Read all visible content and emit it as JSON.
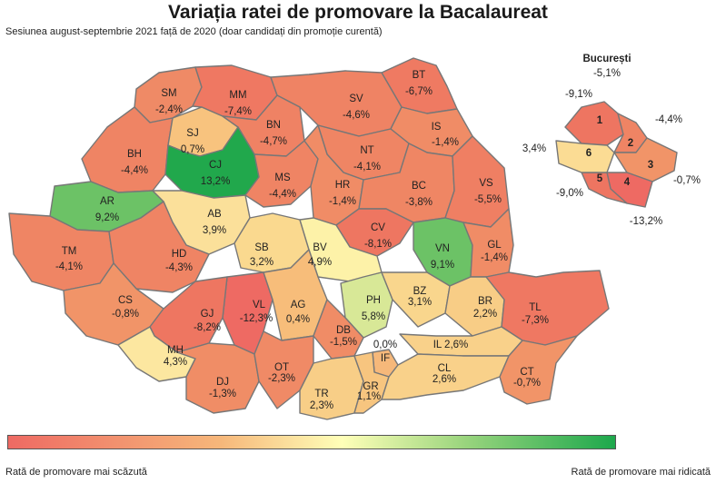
{
  "title": "Variația ratei de promovare la Bacalaureat",
  "subtitle": "Sesiunea august-septembrie 2021 față de 2020 (doar candidați din promoție curentă)",
  "legend": {
    "low": "Rată de promovare mai scăzută",
    "high": "Rată de promovare mai ridicată",
    "colors": [
      "#ee6a63",
      "#f6b77a",
      "#ffffb8",
      "#9bd57e",
      "#1da84c"
    ]
  },
  "counties": [
    {
      "code": "SM",
      "value": "-2,4%",
      "color": "#ef8a66"
    },
    {
      "code": "MM",
      "value": "-7,4%",
      "color": "#ef7862"
    },
    {
      "code": "BT",
      "value": "-6,7%",
      "color": "#ef7a62"
    },
    {
      "code": "SV",
      "value": "-4,6%",
      "color": "#ef8364"
    },
    {
      "code": "BH",
      "value": "-4,4%",
      "color": "#ef8464"
    },
    {
      "code": "SJ",
      "value": "0,7%",
      "color": "#f8c37e"
    },
    {
      "code": "BN",
      "value": "-4,7%",
      "color": "#ef8264"
    },
    {
      "code": "IS",
      "value": "-1,4%",
      "color": "#f08c66"
    },
    {
      "code": "NT",
      "value": "-4,1%",
      "color": "#ef8564"
    },
    {
      "code": "CJ",
      "value": "13,2%",
      "color": "#21a84c"
    },
    {
      "code": "AR",
      "value": "9,2%",
      "color": "#6cc266"
    },
    {
      "code": "MS",
      "value": "-4,4%",
      "color": "#ef8464"
    },
    {
      "code": "HR",
      "value": "-1,4%",
      "color": "#f08c66"
    },
    {
      "code": "BC",
      "value": "-3,8%",
      "color": "#ef8664"
    },
    {
      "code": "VS",
      "value": "-5,5%",
      "color": "#ef7f63"
    },
    {
      "code": "AB",
      "value": "3,9%",
      "color": "#fbe09a"
    },
    {
      "code": "CV",
      "value": "-8,1%",
      "color": "#ee7661"
    },
    {
      "code": "VN",
      "value": "9,1%",
      "color": "#6cc266"
    },
    {
      "code": "TM",
      "value": "-4,1%",
      "color": "#ef8564"
    },
    {
      "code": "HD",
      "value": "-4,3%",
      "color": "#ef8464"
    },
    {
      "code": "SB",
      "value": "3,2%",
      "color": "#fad98f"
    },
    {
      "code": "BV",
      "value": "4,9%",
      "color": "#fdf2a8"
    },
    {
      "code": "GL",
      "value": "-1,4%",
      "color": "#f08c66"
    },
    {
      "code": "CS",
      "value": "-0,8%",
      "color": "#f19468"
    },
    {
      "code": "VL",
      "value": "-12,3%",
      "color": "#ee6a63"
    },
    {
      "code": "AG",
      "value": "0,4%",
      "color": "#f7bd7a"
    },
    {
      "code": "PH",
      "value": "5,8%",
      "color": "#d8e897"
    },
    {
      "code": "BZ",
      "value": "3,1%",
      "color": "#f9d68d"
    },
    {
      "code": "BR",
      "value": "2,2%",
      "color": "#f8cd86"
    },
    {
      "code": "TL",
      "value": "-7,3%",
      "color": "#ef7862"
    },
    {
      "code": "GJ",
      "value": "-8,2%",
      "color": "#ee7661"
    },
    {
      "code": "DB",
      "value": "-1,5%",
      "color": "#f08c66"
    },
    {
      "code": "MH",
      "value": "4,3%",
      "color": "#fce7a0"
    },
    {
      "code": "IF",
      "value": "0,0%",
      "color": "#f6b87a"
    },
    {
      "code": "IL",
      "value": "2,6%",
      "color": "#f9d18a"
    },
    {
      "code": "DJ",
      "value": "-1,3%",
      "color": "#f08d66"
    },
    {
      "code": "OT",
      "value": "-2,3%",
      "color": "#f08a66"
    },
    {
      "code": "TR",
      "value": "2,3%",
      "color": "#f8ce87"
    },
    {
      "code": "GR",
      "value": "1,1%",
      "color": "#f7c57f"
    },
    {
      "code": "CL",
      "value": "2,6%",
      "color": "#f9d18a"
    },
    {
      "code": "CT",
      "value": "-0,7%",
      "color": "#f19468"
    }
  ],
  "bucharest": {
    "title": "București",
    "total": "-5,1%",
    "sectors": [
      {
        "code": "1",
        "value": "-9,1%",
        "color": "#ee7561"
      },
      {
        "code": "2",
        "value": "-4,4%",
        "color": "#ef8464"
      },
      {
        "code": "3",
        "value": "-0,7%",
        "color": "#f19468"
      },
      {
        "code": "4",
        "value": "-13,2%",
        "color": "#ee6a63"
      },
      {
        "code": "5",
        "value": "-9,0%",
        "color": "#ee7561"
      },
      {
        "code": "6",
        "value": "3,4%",
        "color": "#fbdc94"
      }
    ]
  }
}
